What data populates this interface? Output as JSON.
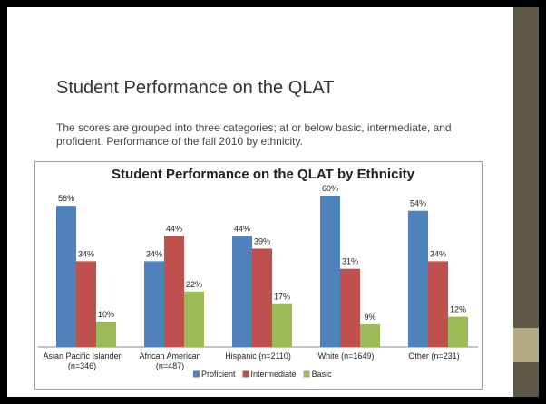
{
  "slide": {
    "title": "Student Performance on the QLAT",
    "body": "The scores are grouped into three categories; at or below basic, intermediate, and proficient.  Performance of the fall 2010 by ethnicity."
  },
  "chart_data": {
    "type": "bar",
    "title": "Student Performance on the QLAT by Ethnicity",
    "categories": [
      "Asian Pacific Islander (n=346)",
      "African American (n=487)",
      "Hispanic (n=2110)",
      "White (n=1649)",
      "Other (n=231)"
    ],
    "series": [
      {
        "name": "Proficient",
        "color": "#4f81bd",
        "values": [
          56,
          34,
          44,
          60,
          54
        ],
        "value_labels": [
          "56%",
          "34%",
          "44%",
          "60%",
          "54%"
        ]
      },
      {
        "name": "Intermediate",
        "color": "#c0504d",
        "values": [
          34,
          44,
          39,
          31,
          34
        ],
        "value_labels": [
          "34%",
          "44%",
          "39%",
          "31%",
          "34%"
        ]
      },
      {
        "name": "Basic",
        "color": "#9bbb59",
        "values": [
          10,
          22,
          17,
          9,
          12
        ],
        "value_labels": [
          "10%",
          "22%",
          "17%",
          "9%",
          "12%"
        ]
      }
    ],
    "ylim": [
      0,
      60
    ],
    "legend": "bottom"
  }
}
